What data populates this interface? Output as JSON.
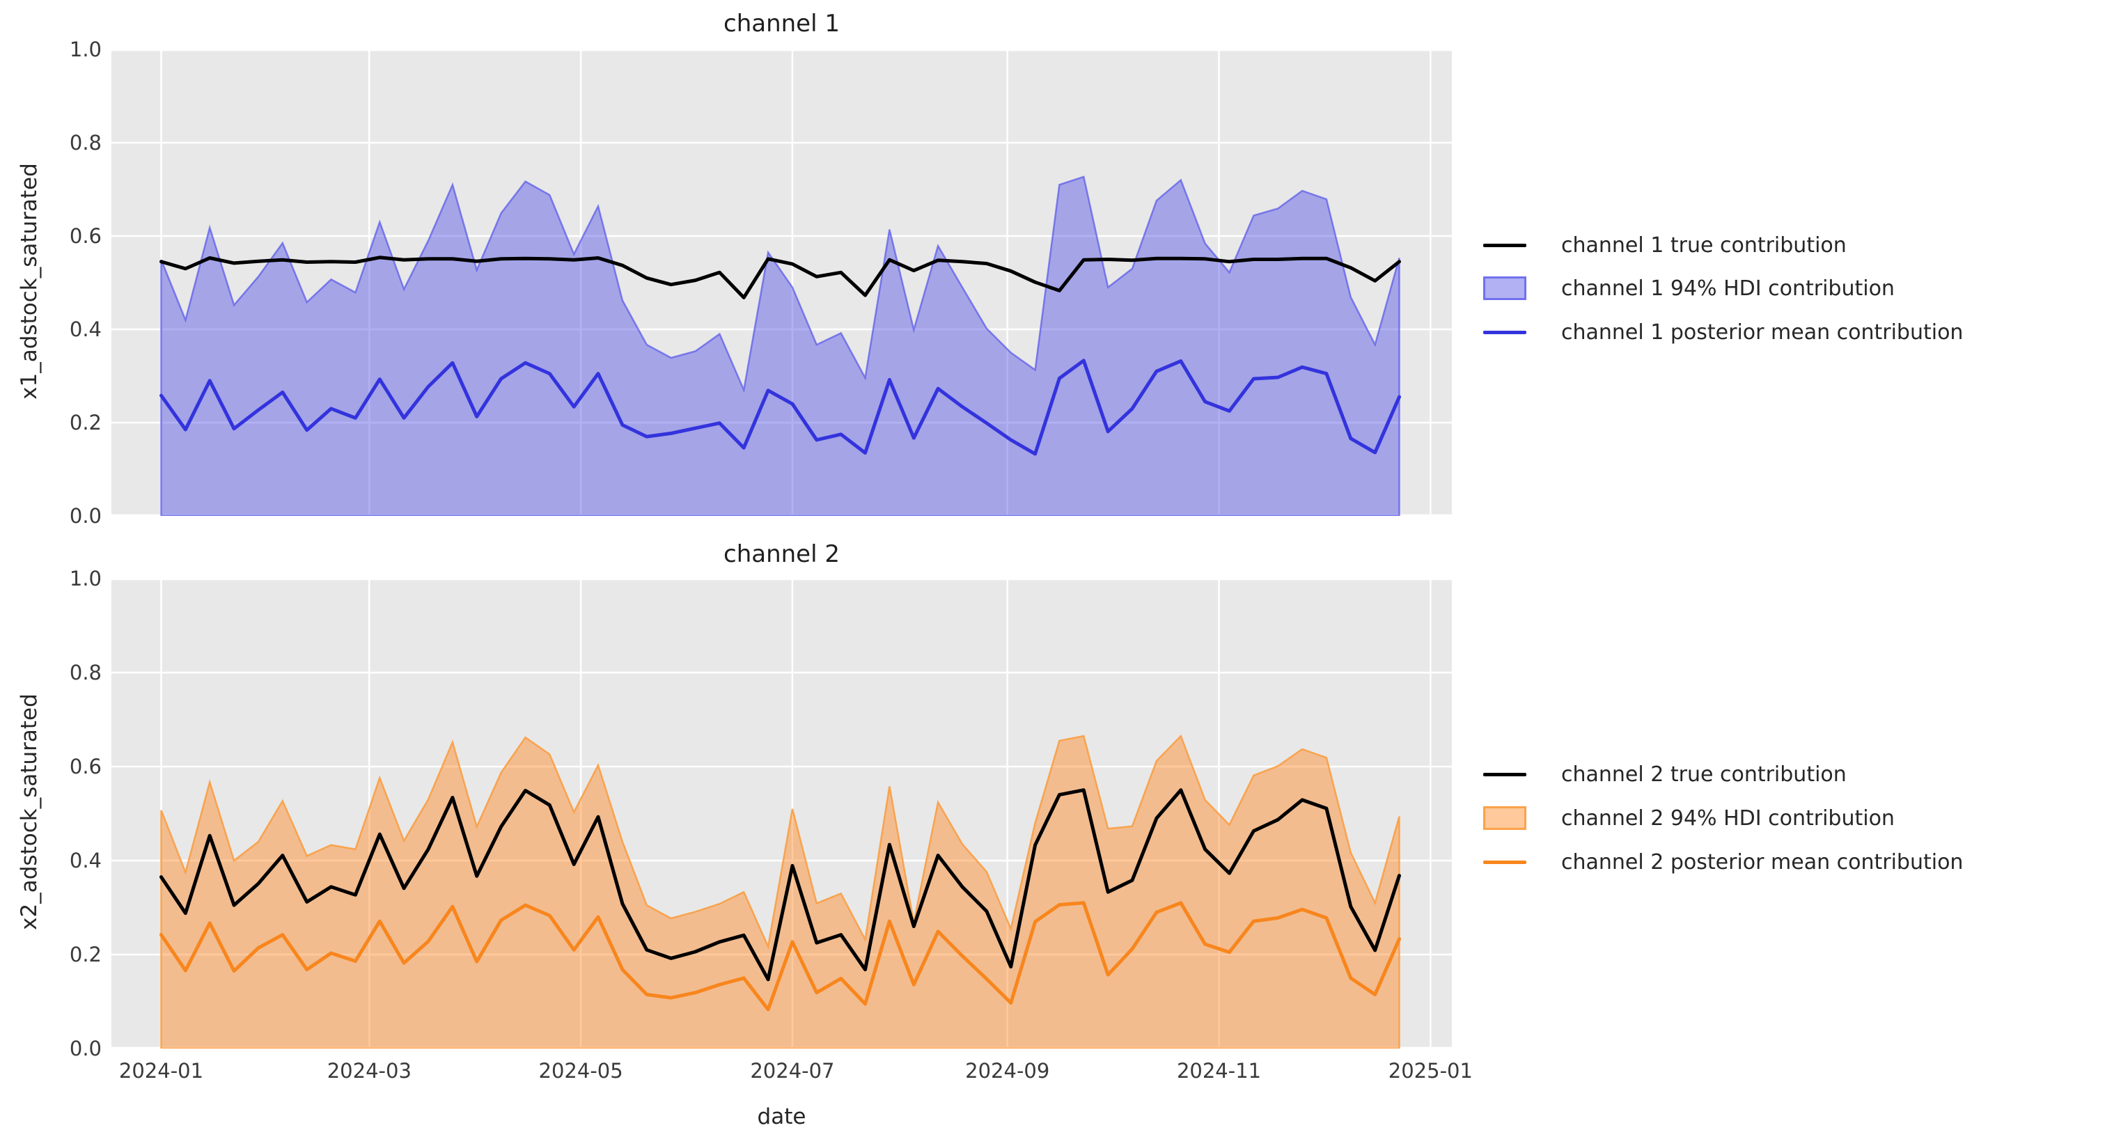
{
  "figure": {
    "background": "#ffffff",
    "plot_background": "#e8e8e8",
    "grid_color": "#ffffff",
    "text_color": "#262626"
  },
  "axes": {
    "xlabel": "date",
    "xtick_labels": [
      "2024-01",
      "2024-03",
      "2024-05",
      "2024-07",
      "2024-09",
      "2024-11",
      "2025-01"
    ],
    "xtick_day_offsets": [
      0,
      60,
      121,
      182,
      244,
      305,
      366
    ],
    "ytick_labels": [
      "1.0",
      "0.8",
      "0.6",
      "0.4",
      "0.2",
      "0.0"
    ],
    "ytick_values": [
      1.0,
      0.8,
      0.6,
      0.4,
      0.2,
      0.0
    ],
    "ylim": [
      0.0,
      1.0
    ],
    "grid": true,
    "legend_position": "right-of-axes"
  },
  "chart_data": [
    {
      "type": "line",
      "title": "channel 1",
      "ylabel": "x1_adstock_saturated",
      "xlabel": "date",
      "ylim": [
        0.0,
        1.0
      ],
      "x_weekly_dates": [
        "2024-01-01",
        "2024-01-08",
        "2024-01-15",
        "2024-01-22",
        "2024-01-29",
        "2024-02-05",
        "2024-02-12",
        "2024-02-19",
        "2024-02-26",
        "2024-03-04",
        "2024-03-11",
        "2024-03-18",
        "2024-03-25",
        "2024-04-01",
        "2024-04-08",
        "2024-04-15",
        "2024-04-22",
        "2024-04-29",
        "2024-05-06",
        "2024-05-13",
        "2024-05-20",
        "2024-05-27",
        "2024-06-03",
        "2024-06-10",
        "2024-06-17",
        "2024-06-24",
        "2024-07-01",
        "2024-07-08",
        "2024-07-15",
        "2024-07-22",
        "2024-07-29",
        "2024-08-05",
        "2024-08-12",
        "2024-08-19",
        "2024-08-26",
        "2024-09-02",
        "2024-09-09",
        "2024-09-16",
        "2024-09-23",
        "2024-09-30",
        "2024-10-07",
        "2024-10-14",
        "2024-10-21",
        "2024-10-28",
        "2024-11-04",
        "2024-11-11",
        "2024-11-18",
        "2024-11-25",
        "2024-12-02",
        "2024-12-09",
        "2024-12-16",
        "2024-12-23"
      ],
      "legend": [
        {
          "label": "channel 1 true contribution",
          "kind": "line",
          "color": "#000000"
        },
        {
          "label": "channel 1 94% HDI contribution",
          "kind": "patch",
          "fill": "rgba(68,68,228,0.42)",
          "edge": "rgba(85,85,235,0.70)"
        },
        {
          "label": "channel 1 posterior mean contribution",
          "kind": "line",
          "color": "#3333dd"
        }
      ],
      "series": [
        {
          "name": "channel 1 true contribution",
          "type": "line",
          "color": "#000000",
          "values": [
            0.545,
            0.53,
            0.553,
            0.542,
            0.546,
            0.549,
            0.544,
            0.545,
            0.544,
            0.554,
            0.549,
            0.551,
            0.551,
            0.546,
            0.551,
            0.552,
            0.551,
            0.549,
            0.553,
            0.537,
            0.51,
            0.496,
            0.505,
            0.522,
            0.468,
            0.551,
            0.54,
            0.513,
            0.522,
            0.473,
            0.549,
            0.526,
            0.548,
            0.545,
            0.541,
            0.525,
            0.501,
            0.483,
            0.549,
            0.55,
            0.548,
            0.552,
            0.552,
            0.551,
            0.545,
            0.55,
            0.55,
            0.552,
            0.552,
            0.532,
            0.504,
            0.545
          ]
        },
        {
          "name": "channel 1 posterior mean contribution",
          "type": "line",
          "color": "#3333dd",
          "values": [
            0.258,
            0.185,
            0.29,
            0.187,
            0.227,
            0.265,
            0.184,
            0.23,
            0.21,
            0.293,
            0.21,
            0.277,
            0.328,
            0.213,
            0.294,
            0.328,
            0.305,
            0.234,
            0.305,
            0.195,
            0.17,
            0.177,
            0.188,
            0.199,
            0.146,
            0.269,
            0.24,
            0.163,
            0.175,
            0.135,
            0.292,
            0.167,
            0.273,
            0.234,
            0.199,
            0.163,
            0.133,
            0.295,
            0.333,
            0.181,
            0.23,
            0.31,
            0.332,
            0.245,
            0.225,
            0.294,
            0.297,
            0.319,
            0.305,
            0.166,
            0.136,
            0.255
          ]
        },
        {
          "name": "channel 1 94% HDI contribution",
          "type": "band",
          "fill": "rgba(68,68,228,0.42)",
          "edge": "rgba(85,85,235,0.70)",
          "lower_value": 0.0,
          "upper": [
            0.549,
            0.42,
            0.618,
            0.452,
            0.513,
            0.585,
            0.458,
            0.507,
            0.479,
            0.63,
            0.486,
            0.59,
            0.71,
            0.527,
            0.649,
            0.717,
            0.688,
            0.561,
            0.664,
            0.462,
            0.367,
            0.339,
            0.353,
            0.39,
            0.27,
            0.565,
            0.49,
            0.367,
            0.392,
            0.296,
            0.614,
            0.399,
            0.579,
            0.49,
            0.402,
            0.35,
            0.313,
            0.71,
            0.727,
            0.49,
            0.53,
            0.676,
            0.72,
            0.584,
            0.522,
            0.644,
            0.659,
            0.697,
            0.679,
            0.469,
            0.367,
            0.553
          ]
        }
      ]
    },
    {
      "type": "line",
      "title": "channel 2",
      "ylabel": "x2_adstock_saturated",
      "xlabel": "date",
      "ylim": [
        0.0,
        1.0
      ],
      "x_weekly_dates": [
        "2024-01-01",
        "2024-01-08",
        "2024-01-15",
        "2024-01-22",
        "2024-01-29",
        "2024-02-05",
        "2024-02-12",
        "2024-02-19",
        "2024-02-26",
        "2024-03-04",
        "2024-03-11",
        "2024-03-18",
        "2024-03-25",
        "2024-04-01",
        "2024-04-08",
        "2024-04-15",
        "2024-04-22",
        "2024-04-29",
        "2024-05-06",
        "2024-05-13",
        "2024-05-20",
        "2024-05-27",
        "2024-06-03",
        "2024-06-10",
        "2024-06-17",
        "2024-06-24",
        "2024-07-01",
        "2024-07-08",
        "2024-07-15",
        "2024-07-22",
        "2024-07-29",
        "2024-08-05",
        "2024-08-12",
        "2024-08-19",
        "2024-08-26",
        "2024-09-02",
        "2024-09-09",
        "2024-09-16",
        "2024-09-23",
        "2024-09-30",
        "2024-10-07",
        "2024-10-14",
        "2024-10-21",
        "2024-10-28",
        "2024-11-04",
        "2024-11-11",
        "2024-11-18",
        "2024-11-25",
        "2024-12-02",
        "2024-12-09",
        "2024-12-16",
        "2024-12-23"
      ],
      "legend": [
        {
          "label": "channel 2 true contribution",
          "kind": "line",
          "color": "#000000"
        },
        {
          "label": "channel 2 94% HDI contribution",
          "kind": "patch",
          "fill": "rgba(255,138,40,0.46)",
          "edge": "rgba(250,155,60,0.85)"
        },
        {
          "label": "channel 2 posterior mean contribution",
          "kind": "line",
          "color": "#f8861d"
        }
      ],
      "series": [
        {
          "name": "channel 2 true contribution",
          "type": "line",
          "color": "#000000",
          "values": [
            0.365,
            0.288,
            0.453,
            0.305,
            0.351,
            0.411,
            0.312,
            0.344,
            0.327,
            0.456,
            0.341,
            0.424,
            0.534,
            0.367,
            0.472,
            0.549,
            0.518,
            0.392,
            0.493,
            0.308,
            0.21,
            0.192,
            0.206,
            0.227,
            0.241,
            0.147,
            0.389,
            0.225,
            0.242,
            0.168,
            0.434,
            0.26,
            0.411,
            0.344,
            0.292,
            0.174,
            0.433,
            0.54,
            0.55,
            0.333,
            0.358,
            0.49,
            0.55,
            0.424,
            0.373,
            0.463,
            0.487,
            0.529,
            0.511,
            0.302,
            0.209,
            0.368
          ]
        },
        {
          "name": "channel 2 posterior mean contribution",
          "type": "line",
          "color": "#f8861d",
          "values": [
            0.242,
            0.166,
            0.267,
            0.165,
            0.214,
            0.242,
            0.168,
            0.203,
            0.186,
            0.271,
            0.182,
            0.228,
            0.302,
            0.185,
            0.273,
            0.305,
            0.283,
            0.21,
            0.28,
            0.168,
            0.115,
            0.108,
            0.119,
            0.136,
            0.15,
            0.083,
            0.227,
            0.119,
            0.149,
            0.095,
            0.271,
            0.136,
            0.249,
            0.197,
            0.148,
            0.097,
            0.27,
            0.306,
            0.31,
            0.157,
            0.212,
            0.29,
            0.31,
            0.222,
            0.205,
            0.271,
            0.278,
            0.296,
            0.278,
            0.15,
            0.115,
            0.233
          ]
        },
        {
          "name": "channel 2 94% HDI contribution",
          "type": "band",
          "fill": "rgba(255,138,40,0.46)",
          "edge": "rgba(250,155,60,0.85)",
          "lower_value": 0.0,
          "upper": [
            0.507,
            0.375,
            0.567,
            0.4,
            0.44,
            0.527,
            0.41,
            0.433,
            0.424,
            0.576,
            0.442,
            0.53,
            0.652,
            0.472,
            0.587,
            0.662,
            0.626,
            0.503,
            0.603,
            0.44,
            0.305,
            0.277,
            0.291,
            0.308,
            0.333,
            0.217,
            0.51,
            0.309,
            0.33,
            0.232,
            0.558,
            0.268,
            0.524,
            0.435,
            0.376,
            0.255,
            0.48,
            0.655,
            0.665,
            0.468,
            0.473,
            0.612,
            0.665,
            0.529,
            0.476,
            0.581,
            0.601,
            0.637,
            0.619,
            0.417,
            0.31,
            0.494
          ]
        }
      ]
    }
  ]
}
